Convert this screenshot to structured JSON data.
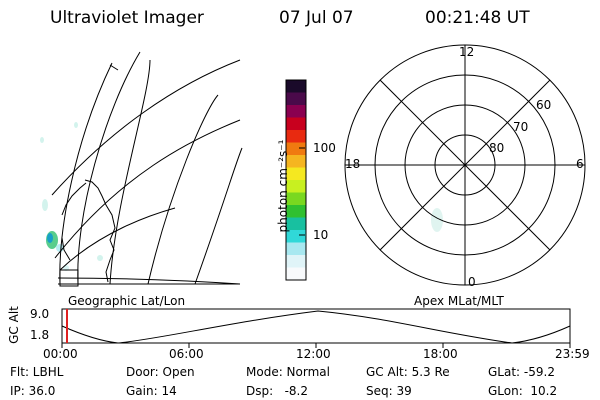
{
  "header": {
    "title": "Ultraviolet Imager",
    "date": "07 Jul 07",
    "time": "00:21:48 UT"
  },
  "colorbar": {
    "unit_label": "photon cm⁻²s⁻¹",
    "ticks": [
      "100",
      "10"
    ],
    "colors": [
      "#1a0a2a",
      "#4a0a4a",
      "#8a0050",
      "#c8001e",
      "#e82a10",
      "#f07a10",
      "#f5b520",
      "#f5e820",
      "#c8f020",
      "#7ad820",
      "#30c030",
      "#18c0a0",
      "#30d8d8",
      "#a8e8f0",
      "#e0f4f8",
      "#f8fafc"
    ]
  },
  "left_map": {
    "label": "Geographic Lat/Lon"
  },
  "polar_plot": {
    "label": "Apex MLat/MLT",
    "mlt_labels": [
      "12",
      "18",
      "6",
      "0"
    ],
    "lat_labels": [
      "60",
      "70",
      "80"
    ]
  },
  "altitude_plot": {
    "ylabel": "GC Alt",
    "yticks": [
      "9.0",
      "1.8"
    ],
    "xticks": [
      "00:00",
      "06:00",
      "12:00",
      "18:00",
      "23:59"
    ],
    "current_time_color": "#e02020"
  },
  "info": {
    "flt": "Flt: LBHL",
    "ip": "IP: 36.0",
    "door": "Door: Open",
    "gain": "Gain: 14",
    "mode": "Mode: Normal",
    "dsp": "Dsp:   -8.2",
    "gcalt": "GC Alt: 5.3 Re",
    "seq": "Seq: 39",
    "glat": "GLat: -59.2",
    "glon": "GLon:  10.2"
  }
}
